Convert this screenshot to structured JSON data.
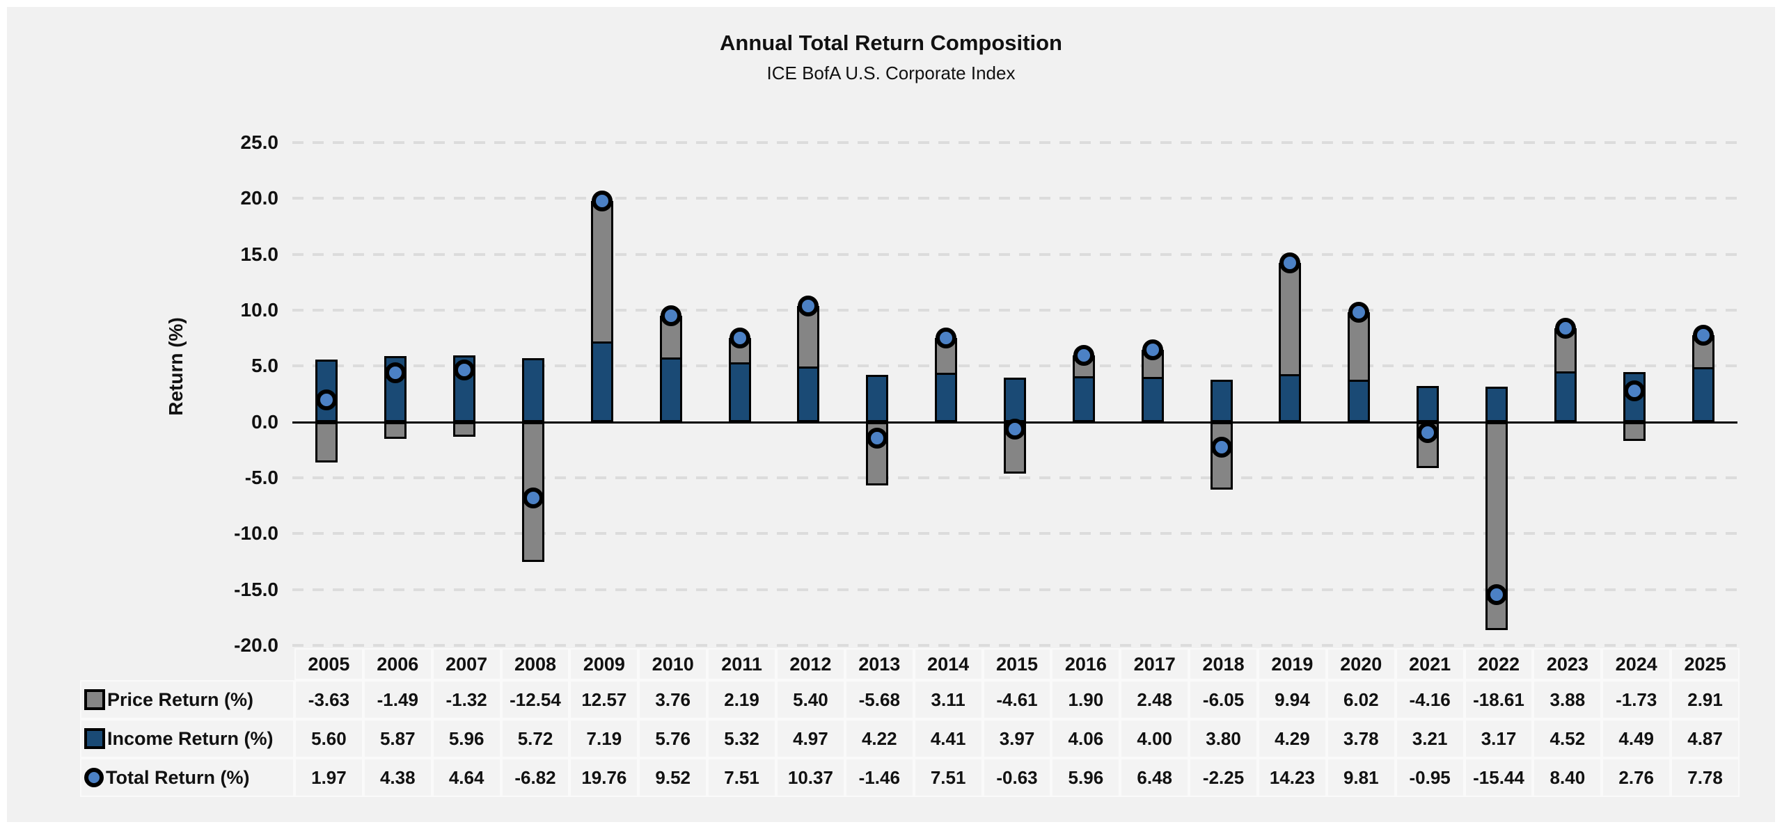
{
  "page": {
    "title": "Annual Total Return Composition",
    "subtitle": "ICE BofA U.S. Corporate Index"
  },
  "colors": {
    "panel_bg": "#f1f1f1",
    "price_bar": "#858585",
    "income_bar": "#1A4A75",
    "total_marker": "#4C81C5",
    "bar_outline": "#000000",
    "gridline": "#dcdcdc",
    "zero_line": "#000000",
    "cell_bg": "#f3f3f3",
    "cell_border": "#fafafa",
    "text": "#111111"
  },
  "chart_data": {
    "type": "bar",
    "subtype": "stacked-bars-with-markers",
    "title": "Annual Total Return Composition",
    "subtitle": "ICE BofA U.S. Corporate Index",
    "xlabel": "",
    "ylabel": "Return (%)",
    "ylim": [
      -20.0,
      25.0
    ],
    "ytick_step": 5.0,
    "ytick_format": "one-decimal",
    "grid": "horizontal-dashed",
    "legend_position": "data-table-row-labels",
    "categories": [
      2005,
      2006,
      2007,
      2008,
      2009,
      2010,
      2011,
      2012,
      2013,
      2014,
      2015,
      2016,
      2017,
      2018,
      2019,
      2020,
      2021,
      2022,
      2023,
      2024,
      2025
    ],
    "series": [
      {
        "name": "Price Return (%)",
        "render": "stacked-bar",
        "color_key": "price_bar",
        "values": [
          -3.63,
          -1.49,
          -1.32,
          -12.54,
          12.57,
          3.76,
          2.19,
          5.4,
          -5.68,
          3.11,
          -4.61,
          1.9,
          2.48,
          -6.05,
          9.94,
          6.02,
          -4.16,
          -18.61,
          3.88,
          -1.73,
          2.91
        ]
      },
      {
        "name": "Income Return (%)",
        "render": "stacked-bar",
        "color_key": "income_bar",
        "values": [
          5.6,
          5.87,
          5.96,
          5.72,
          7.19,
          5.76,
          5.32,
          4.97,
          4.22,
          4.41,
          3.97,
          4.06,
          4.0,
          3.8,
          4.29,
          3.78,
          3.21,
          3.17,
          4.52,
          4.49,
          4.87
        ]
      },
      {
        "name": "Total Return (%)",
        "render": "circle-marker",
        "color_key": "total_marker",
        "values": [
          1.97,
          4.38,
          4.64,
          -6.82,
          19.76,
          9.52,
          7.51,
          10.37,
          -1.46,
          7.51,
          -0.63,
          5.96,
          6.48,
          -2.25,
          14.23,
          9.81,
          -0.95,
          -15.44,
          8.4,
          2.76,
          7.78
        ]
      }
    ]
  }
}
